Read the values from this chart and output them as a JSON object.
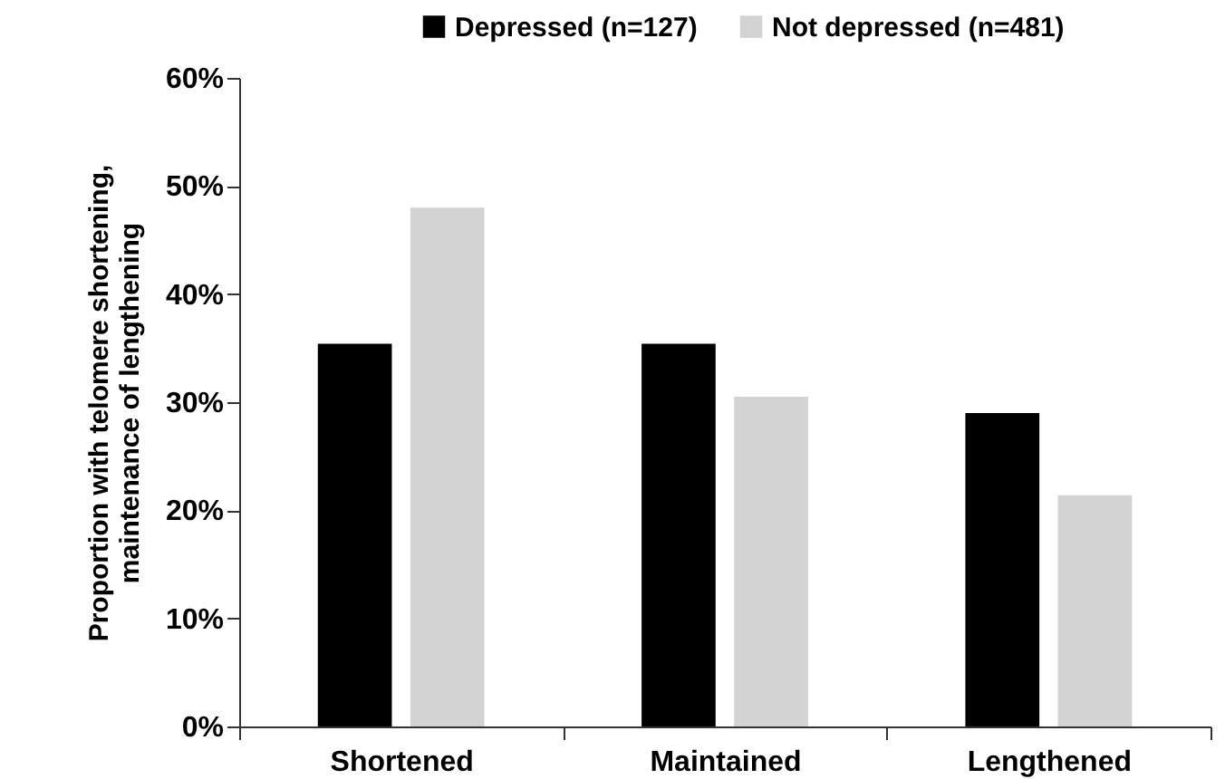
{
  "chart_data": {
    "type": "bar",
    "ylabel": "Proportion with telomere shortening,\nmaintenance of lengthening",
    "categories": [
      "Shortened",
      "Maintained",
      "Lengthened"
    ],
    "series": [
      {
        "name": "Depressed (n=127)",
        "color": "#000000",
        "values": [
          35.4,
          35.4,
          29.0
        ]
      },
      {
        "name": "Not depressed (n=481)",
        "color": "#d3d3d3",
        "values": [
          48.0,
          30.5,
          21.4
        ]
      }
    ],
    "ylim": [
      0,
      60
    ],
    "yticks": [
      {
        "value": 0,
        "label": "0%"
      },
      {
        "value": 10,
        "label": "10%"
      },
      {
        "value": 20,
        "label": "20%"
      },
      {
        "value": 30,
        "label": "30%"
      },
      {
        "value": 40,
        "label": "40%"
      },
      {
        "value": 50,
        "label": "50%"
      },
      {
        "value": 60,
        "label": "60%"
      }
    ],
    "grid": false,
    "legend": "top right"
  }
}
